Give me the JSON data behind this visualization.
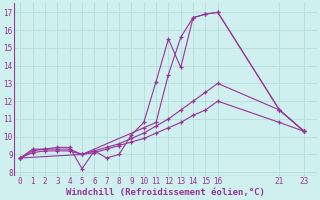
{
  "xlabel": "Windchill (Refroidissement éolien,°C)",
  "ylabel": "",
  "background_color": "#cff0ee",
  "grid_color": "#b8e0dc",
  "line_color": "#993399",
  "xlim": [
    -0.5,
    24
  ],
  "ylim": [
    7.8,
    17.5
  ],
  "xticks": [
    0,
    1,
    2,
    3,
    4,
    5,
    6,
    7,
    8,
    9,
    10,
    11,
    12,
    13,
    14,
    15,
    16,
    21,
    23
  ],
  "yticks": [
    8,
    9,
    10,
    11,
    12,
    13,
    14,
    15,
    16,
    17
  ],
  "lines": [
    {
      "x": [
        0,
        1,
        2,
        3,
        4,
        5,
        6,
        7,
        8,
        9,
        10,
        11,
        12,
        13,
        14,
        15,
        16,
        21,
        23
      ],
      "y": [
        8.8,
        9.3,
        9.3,
        9.4,
        9.4,
        8.2,
        9.2,
        8.8,
        9.0,
        10.1,
        10.8,
        13.1,
        15.5,
        13.9,
        16.7,
        16.9,
        17.0,
        11.5,
        10.3
      ]
    },
    {
      "x": [
        0,
        1,
        2,
        3,
        4,
        5,
        6,
        7,
        8,
        9,
        10,
        11,
        12,
        13,
        14,
        15,
        16,
        21,
        23
      ],
      "y": [
        8.8,
        9.2,
        9.3,
        9.3,
        9.3,
        9.0,
        9.2,
        9.4,
        9.6,
        9.9,
        10.2,
        10.6,
        11.0,
        11.5,
        12.0,
        12.5,
        13.0,
        11.5,
        10.3
      ]
    },
    {
      "x": [
        0,
        1,
        2,
        3,
        4,
        5,
        6,
        7,
        8,
        9,
        10,
        11,
        12,
        13,
        14,
        15,
        16,
        21,
        23
      ],
      "y": [
        8.8,
        9.1,
        9.2,
        9.2,
        9.2,
        9.0,
        9.1,
        9.3,
        9.5,
        9.7,
        9.9,
        10.2,
        10.5,
        10.8,
        11.2,
        11.5,
        12.0,
        10.8,
        10.3
      ]
    },
    {
      "x": [
        0,
        5,
        10,
        11,
        12,
        13,
        14,
        15,
        16,
        21,
        23
      ],
      "y": [
        8.8,
        9.0,
        10.5,
        10.8,
        13.5,
        15.6,
        16.7,
        16.9,
        17.0,
        11.5,
        10.3
      ]
    }
  ]
}
